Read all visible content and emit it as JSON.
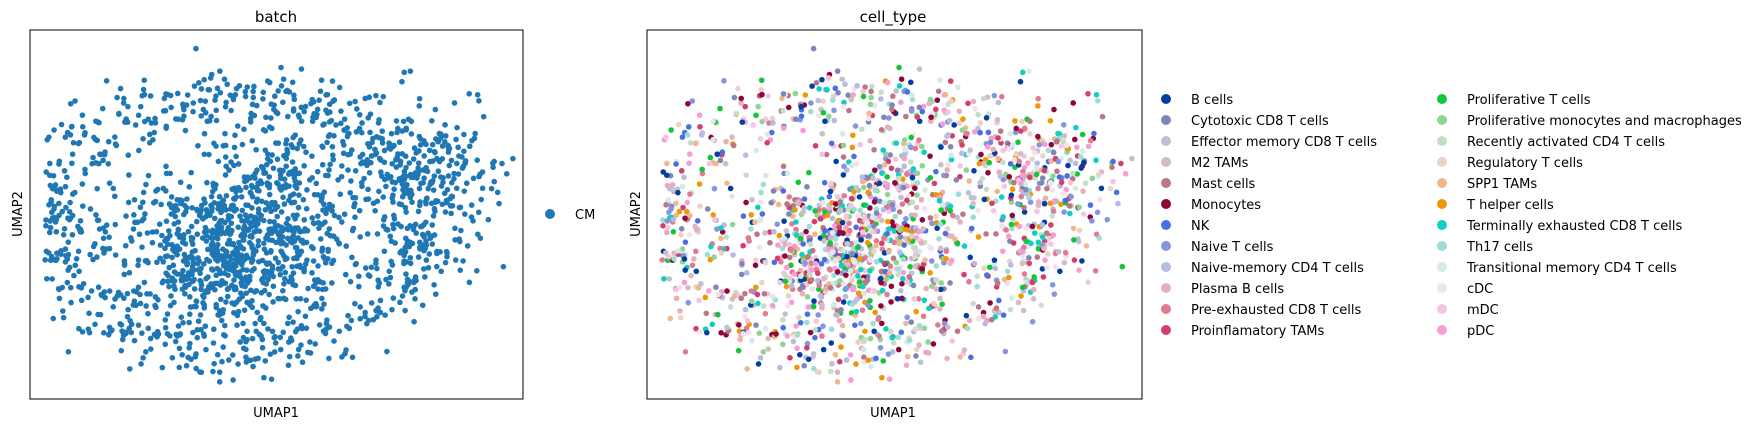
{
  "chart_data": [
    {
      "type": "scatter",
      "title": "batch",
      "xlabel": "UMAP1",
      "ylabel": "UMAP2",
      "xticks": false,
      "yticks": false,
      "legend_placement": "right",
      "series": [
        {
          "name": "CM",
          "color": "#1f77b4"
        }
      ]
    },
    {
      "type": "scatter",
      "title": "cell_type",
      "xlabel": "UMAP1",
      "ylabel": "UMAP2",
      "xticks": false,
      "yticks": false,
      "legend_placement": "right",
      "series": [
        {
          "name": "B cells",
          "color": "#023fa5"
        },
        {
          "name": "Cytotoxic CD8 T cells",
          "color": "#7d87b9"
        },
        {
          "name": "Effector memory CD8 T cells",
          "color": "#bec1d4"
        },
        {
          "name": "M2 TAMs",
          "color": "#d6bcc0"
        },
        {
          "name": "Mast cells",
          "color": "#bb7784"
        },
        {
          "name": "Monocytes",
          "color": "#8e063b"
        },
        {
          "name": "NK",
          "color": "#4a6fe3"
        },
        {
          "name": "Naive T cells",
          "color": "#8595e1"
        },
        {
          "name": "Naive-memory CD4 T cells",
          "color": "#b5bbe3"
        },
        {
          "name": "Plasma B cells",
          "color": "#e6afb9"
        },
        {
          "name": "Pre-exhausted CD8 T cells",
          "color": "#e07b91"
        },
        {
          "name": "Proinflamatory TAMs",
          "color": "#d33f6a"
        },
        {
          "name": "Proliferative T cells",
          "color": "#11c638"
        },
        {
          "name": "Proliferative monocytes and macrophages",
          "color": "#8dd593"
        },
        {
          "name": "Recently activated CD4 T cells",
          "color": "#c6dec7"
        },
        {
          "name": "Regulatory T cells",
          "color": "#ead3c6"
        },
        {
          "name": "SPP1 TAMs",
          "color": "#f0b98d"
        },
        {
          "name": "T helper cells",
          "color": "#ef9708"
        },
        {
          "name": "Terminally exhausted CD8 T cells",
          "color": "#0fcfc0"
        },
        {
          "name": "Th17 cells",
          "color": "#9cded6"
        },
        {
          "name": "Transitional memory CD4 T cells",
          "color": "#d5eae7"
        },
        {
          "name": "cDC",
          "color": "#f3e1eb"
        },
        {
          "name": "mDC",
          "color": "#f6c4e1"
        },
        {
          "name": "pDC",
          "color": "#f79cd4"
        }
      ]
    }
  ]
}
